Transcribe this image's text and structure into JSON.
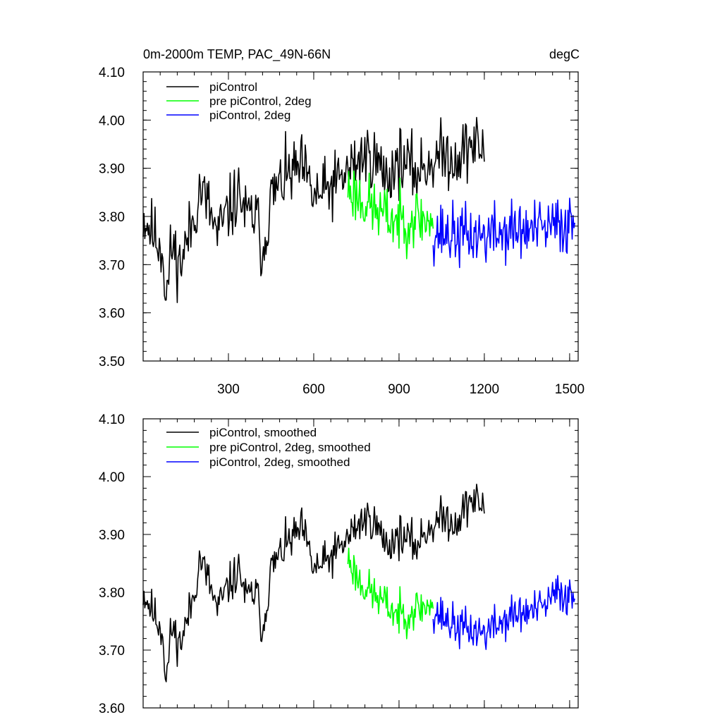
{
  "chart_data": [
    {
      "type": "line",
      "title_left": "0m-2000m TEMP, PAC_49N-66N",
      "title_right": "degC",
      "xlim": [
        0,
        1530
      ],
      "ylim": [
        3.5,
        4.1
      ],
      "x_ticks": [
        300,
        600,
        900,
        1200,
        1500
      ],
      "y_ticks": [
        "3.50",
        "3.60",
        "3.70",
        "3.80",
        "3.90",
        "4.00",
        "4.10"
      ],
      "legend_position": "top-left",
      "series": [
        {
          "name": "piControl",
          "color": "#000000",
          "x_start": 0,
          "x_end": 1200,
          "anchors": [
            [
              0,
              3.8
            ],
            [
              40,
              3.76
            ],
            [
              70,
              3.73
            ],
            [
              80,
              3.62
            ],
            [
              100,
              3.74
            ],
            [
              130,
              3.7
            ],
            [
              160,
              3.76
            ],
            [
              180,
              3.8
            ],
            [
              200,
              3.86
            ],
            [
              230,
              3.82
            ],
            [
              260,
              3.76
            ],
            [
              300,
              3.81
            ],
            [
              340,
              3.85
            ],
            [
              360,
              3.8
            ],
            [
              400,
              3.8
            ],
            [
              420,
              3.72
            ],
            [
              450,
              3.84
            ],
            [
              500,
              3.88
            ],
            [
              560,
              3.9
            ],
            [
              600,
              3.84
            ],
            [
              640,
              3.85
            ],
            [
              700,
              3.88
            ],
            [
              760,
              3.92
            ],
            [
              800,
              3.93
            ],
            [
              860,
              3.88
            ],
            [
              900,
              3.92
            ],
            [
              960,
              3.89
            ],
            [
              1000,
              3.91
            ],
            [
              1060,
              3.93
            ],
            [
              1100,
              3.92
            ],
            [
              1150,
              3.95
            ],
            [
              1200,
              3.94
            ]
          ],
          "noise": 0.042,
          "seed": 11
        },
        {
          "name": "pre piControl, 2deg",
          "color": "#00ff00",
          "x_start": 720,
          "x_end": 1020,
          "anchors": [
            [
              720,
              3.86
            ],
            [
              760,
              3.84
            ],
            [
              800,
              3.82
            ],
            [
              850,
              3.8
            ],
            [
              900,
              3.79
            ],
            [
              950,
              3.8
            ],
            [
              1020,
              3.79
            ]
          ],
          "noise": 0.04,
          "seed": 23
        },
        {
          "name": "piControl, 2deg",
          "color": "#0000ff",
          "x_start": 1020,
          "x_end": 1520,
          "anchors": [
            [
              1020,
              3.77
            ],
            [
              1100,
              3.76
            ],
            [
              1200,
              3.76
            ],
            [
              1300,
              3.77
            ],
            [
              1400,
              3.77
            ],
            [
              1460,
              3.78
            ],
            [
              1520,
              3.79
            ]
          ],
          "noise": 0.04,
          "seed": 37
        }
      ]
    },
    {
      "type": "line",
      "xlim": [
        0,
        1530
      ],
      "ylim": [
        3.6,
        4.1
      ],
      "y_ticks": [
        "3.60",
        "3.70",
        "3.80",
        "3.90",
        "4.00",
        "4.10"
      ],
      "legend_position": "top-left",
      "series": [
        {
          "name": "piControl, smoothed",
          "color": "#000000",
          "x_start": 0,
          "x_end": 1200,
          "anchors": [
            [
              0,
              3.8
            ],
            [
              40,
              3.76
            ],
            [
              70,
              3.73
            ],
            [
              80,
              3.64
            ],
            [
              100,
              3.74
            ],
            [
              130,
              3.71
            ],
            [
              160,
              3.76
            ],
            [
              180,
              3.8
            ],
            [
              200,
              3.86
            ],
            [
              230,
              3.82
            ],
            [
              260,
              3.77
            ],
            [
              300,
              3.81
            ],
            [
              340,
              3.84
            ],
            [
              360,
              3.79
            ],
            [
              400,
              3.8
            ],
            [
              420,
              3.73
            ],
            [
              450,
              3.84
            ],
            [
              500,
              3.88
            ],
            [
              560,
              3.91
            ],
            [
              600,
              3.84
            ],
            [
              640,
              3.85
            ],
            [
              700,
              3.88
            ],
            [
              760,
              3.92
            ],
            [
              800,
              3.93
            ],
            [
              860,
              3.88
            ],
            [
              900,
              3.9
            ],
            [
              960,
              3.88
            ],
            [
              1000,
              3.91
            ],
            [
              1060,
              3.93
            ],
            [
              1100,
              3.92
            ],
            [
              1150,
              3.96
            ],
            [
              1200,
              3.95
            ]
          ],
          "noise": 0.022,
          "seed": 11
        },
        {
          "name": "pre piControl, 2deg, smoothed",
          "color": "#00ff00",
          "x_start": 720,
          "x_end": 1020,
          "anchors": [
            [
              720,
              3.86
            ],
            [
              760,
              3.82
            ],
            [
              800,
              3.8
            ],
            [
              850,
              3.78
            ],
            [
              900,
              3.76
            ],
            [
              950,
              3.77
            ],
            [
              1020,
              3.78
            ]
          ],
          "noise": 0.022,
          "seed": 23
        },
        {
          "name": "piControl, 2deg, smoothed",
          "color": "#0000ff",
          "x_start": 1020,
          "x_end": 1520,
          "anchors": [
            [
              1020,
              3.77
            ],
            [
              1100,
              3.74
            ],
            [
              1200,
              3.73
            ],
            [
              1300,
              3.76
            ],
            [
              1400,
              3.77
            ],
            [
              1460,
              3.8
            ],
            [
              1520,
              3.79
            ]
          ],
          "noise": 0.022,
          "seed": 37
        }
      ]
    }
  ]
}
